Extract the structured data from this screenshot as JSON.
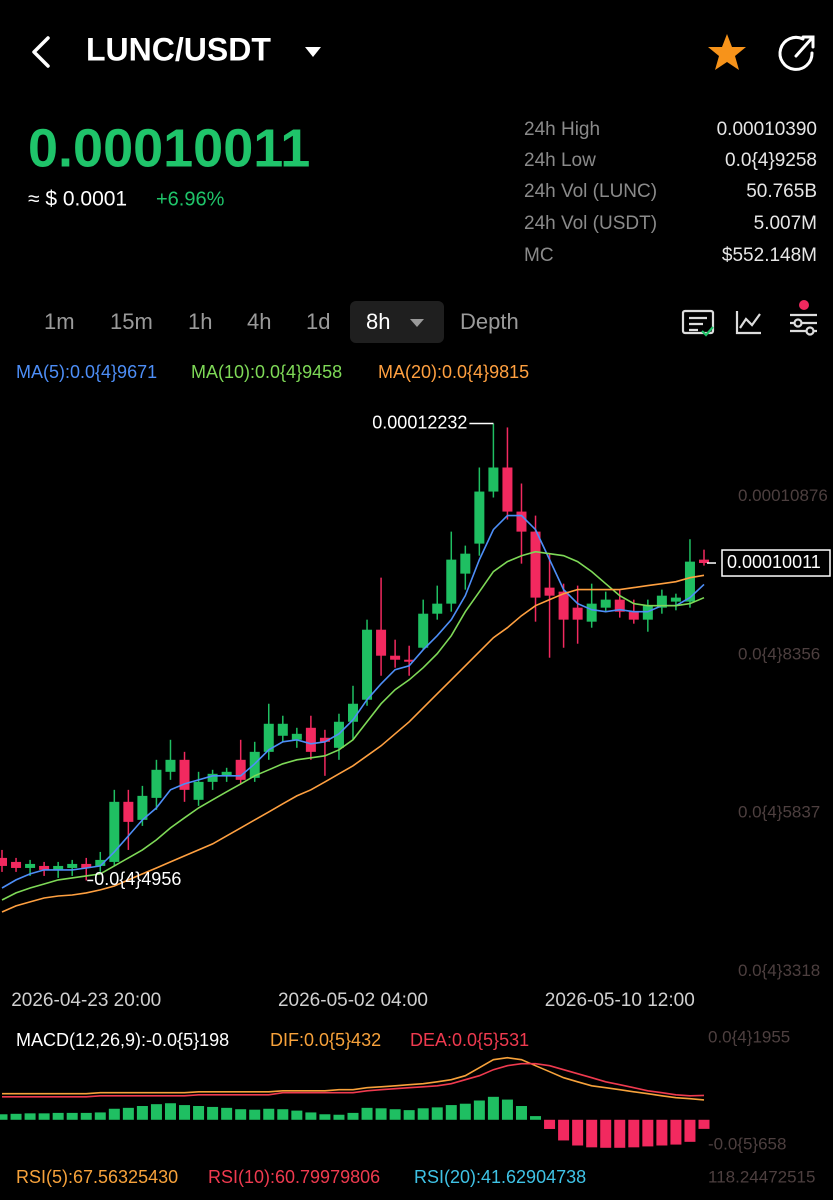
{
  "header": {
    "pair": "LUNC/USDT",
    "price": "0.00010011",
    "fiat": "≈ $ 0.0001",
    "change": "+6.96%"
  },
  "stats": [
    {
      "label": "24h High",
      "value": "0.00010390"
    },
    {
      "label": "24h Low",
      "value": "0.0{4}9258"
    },
    {
      "label": "24h Vol (LUNC)",
      "value": "50.765B"
    },
    {
      "label": "24h Vol (USDT)",
      "value": "5.007M"
    },
    {
      "label": "MC",
      "value": "$552.148M"
    }
  ],
  "tabs": [
    "1m",
    "15m",
    "1h",
    "4h",
    "1d",
    "8h",
    "Depth"
  ],
  "chart_data": [
    {
      "type": "candlestick",
      "categories": [
        null,
        null,
        null,
        null,
        null,
        null,
        "2026-04-23 20:00",
        null,
        null,
        null,
        null,
        null,
        null,
        null,
        null,
        null,
        null,
        null,
        null,
        null,
        null,
        null,
        null,
        null,
        null,
        "2026-05-02 04:00",
        null,
        null,
        null,
        null,
        null,
        null,
        null,
        null,
        null,
        null,
        null,
        null,
        null,
        null,
        null,
        null,
        null,
        null,
        "2026-05-10 12:00",
        null,
        null,
        null,
        null,
        null,
        null
      ],
      "open": [
        5.315e-05,
        5.251e-05,
        5.155e-05,
        5.187e-05,
        5.124e-05,
        5.155e-05,
        5.219e-05,
        5.187e-05,
        5.251e-05,
        6.208e-05,
        5.921e-05,
        6.271e-05,
        6.686e-05,
        6.877e-05,
        6.24e-05,
        6.526e-05,
        6.622e-05,
        6.877e-05,
        6.59e-05,
        7.004e-05,
        7.26e-05,
        7.196e-05,
        7.387e-05,
        7.228e-05,
        7.068e-05,
        7.483e-05,
        7.834e-05,
        8.949e-05,
        8.535e-05,
        8.471e-05,
        8.662e-05,
        9.204e-05,
        9.364e-05,
        9.842e-05,
        0.0001032,
        0.00011149,
        0.00011532,
        0.0001083,
        0.00010511,
        9.619e-05,
        9.555e-05,
        9.3e-05,
        9.077e-05,
        9.3e-05,
        9.428e-05,
        9.236e-05,
        9.109e-05,
        9.3e-05,
        9.396e-05,
        9.396e-05,
        0.00010065
      ],
      "high": [
        5.442e-05,
        5.315e-05,
        5.283e-05,
        5.251e-05,
        5.251e-05,
        5.283e-05,
        5.315e-05,
        5.41e-05,
        6.399e-05,
        6.399e-05,
        6.462e-05,
        6.877e-05,
        7.196e-05,
        7.004e-05,
        6.686e-05,
        6.718e-05,
        6.75e-05,
        7.196e-05,
        7.164e-05,
        7.77e-05,
        7.579e-05,
        7.387e-05,
        7.579e-05,
        7.355e-05,
        7.611e-05,
        8.056e-05,
        9.109e-05,
        9.778e-05,
        8.79e-05,
        8.694e-05,
        9.428e-05,
        9.651e-05,
        0.00010511,
        0.00010288,
        0.00011532,
        0.00012232,
        0.0001217,
        0.00011277,
        0.00010766,
        0.0001016,
        9.682e-05,
        9.651e-05,
        9.682e-05,
        9.555e-05,
        9.587e-05,
        9.428e-05,
        9.428e-05,
        9.587e-05,
        9.523e-05,
        0.0001039,
        0.00010224
      ],
      "low": [
        5.092e-05,
        5.092e-05,
        5.028e-05,
        5.028e-05,
        4.996e-05,
        5.028e-05,
        4.956e-05,
        5.092e-05,
        5.187e-05,
        5.442e-05,
        5.825e-05,
        6.08e-05,
        6.558e-05,
        6.208e-05,
        6.144e-05,
        6.399e-05,
        6.526e-05,
        6.494e-05,
        6.526e-05,
        6.877e-05,
        7.164e-05,
        7.068e-05,
        6.877e-05,
        6.622e-05,
        6.877e-05,
        7.196e-05,
        7.738e-05,
        8.216e-05,
        8.344e-05,
        8.216e-05,
        8.63e-05,
        9.109e-05,
        9.236e-05,
        9.587e-05,
        0.00010128,
        0.00011054,
        0.00010703,
        0.00010001,
        9.077e-05,
        8.503e-05,
        8.662e-05,
        8.726e-05,
        8.981e-05,
        9.236e-05,
        9.141e-05,
        9.045e-05,
        8.917e-05,
        9.204e-05,
        9.258e-05,
        9.3e-05,
        9.97e-05
      ],
      "close": [
        5.187e-05,
        5.155e-05,
        5.219e-05,
        5.124e-05,
        5.187e-05,
        5.219e-05,
        5.155e-05,
        5.283e-05,
        6.208e-05,
        5.889e-05,
        6.303e-05,
        6.718e-05,
        6.877e-05,
        6.399e-05,
        6.526e-05,
        6.654e-05,
        6.686e-05,
        6.558e-05,
        7.004e-05,
        7.451e-05,
        7.451e-05,
        7.291e-05,
        7.004e-05,
        7.164e-05,
        7.483e-05,
        7.77e-05,
        8.949e-05,
        8.535e-05,
        8.471e-05,
        8.439e-05,
        9.204e-05,
        9.364e-05,
        0.00010065,
        0.0001016,
        0.00011149,
        0.00011532,
        0.0001083,
        0.00010511,
        9.46e-05,
        9.491e-05,
        9.109e-05,
        9.109e-05,
        9.364e-05,
        9.428e-05,
        9.236e-05,
        9.109e-05,
        9.332e-05,
        9.491e-05,
        9.46e-05,
        0.00010033,
        0.00010011
      ],
      "low_value_labels": [
        null,
        null,
        null,
        null,
        null,
        null,
        "0.0{4}4956",
        null,
        null,
        null,
        null,
        null,
        null,
        null,
        null,
        null,
        null,
        null,
        null,
        null,
        null,
        null,
        null,
        null,
        null,
        null,
        null,
        null,
        null,
        null,
        null,
        null,
        null,
        null,
        null,
        null,
        null,
        null,
        null,
        null,
        null,
        null,
        null,
        null,
        null,
        null,
        null,
        null,
        null,
        null,
        null
      ],
      "up_color": "#1fbf62",
      "down_color": "#f2295f",
      "series": [
        {
          "name": "MA(5):0.0{4}9671",
          "color": "#4d8ef7",
          "values": [
            4.836e-05,
            4.964e-05,
            5.06e-05,
            5.124e-05,
            5.124e-05,
            5.124e-05,
            5.155e-05,
            5.187e-05,
            5.41e-05,
            5.666e-05,
            5.921e-05,
            6.112e-05,
            6.399e-05,
            6.494e-05,
            6.558e-05,
            6.622e-05,
            6.622e-05,
            6.622e-05,
            6.813e-05,
            7.036e-05,
            7.164e-05,
            7.196e-05,
            7.132e-05,
            7.164e-05,
            7.291e-05,
            7.515e-05,
            7.834e-05,
            8.088e-05,
            8.312e-05,
            8.375e-05,
            8.63e-05,
            8.854e-05,
            9.109e-05,
            9.491e-05,
            0.00010065,
            0.00010543,
            0.00010766,
            0.00010766,
            0.00010543,
            0.00010065,
            9.587e-05,
            9.364e-05,
            9.268e-05,
            9.236e-05,
            9.268e-05,
            9.236e-05,
            9.236e-05,
            9.332e-05,
            9.332e-05,
            9.46e-05,
            9.671e-05
          ]
        },
        {
          "name": "MA(10):0.0{4}9458",
          "color": "#7ed957",
          "values": [
            4.645e-05,
            4.757e-05,
            4.836e-05,
            4.9e-05,
            4.964e-05,
            4.996e-05,
            5.028e-05,
            5.06e-05,
            5.187e-05,
            5.315e-05,
            5.442e-05,
            5.602e-05,
            5.793e-05,
            5.953e-05,
            6.112e-05,
            6.24e-05,
            6.367e-05,
            6.494e-05,
            6.622e-05,
            6.718e-05,
            6.813e-05,
            6.877e-05,
            6.909e-05,
            6.941e-05,
            7.036e-05,
            7.196e-05,
            7.483e-05,
            7.77e-05,
            7.993e-05,
            8.152e-05,
            8.344e-05,
            8.567e-05,
            8.854e-05,
            9.236e-05,
            9.555e-05,
            9.874e-05,
            0.00010033,
            0.00010128,
            0.00010192,
            0.0001016,
            0.00010128,
            0.00010033,
            9.874e-05,
            9.682e-05,
            9.491e-05,
            9.364e-05,
            9.332e-05,
            9.332e-05,
            9.332e-05,
            9.364e-05,
            9.458e-05
          ]
        },
        {
          "name": "MA(20):0.0{4}9815",
          "color": "#ffa040",
          "values": [
            4.454e-05,
            4.55e-05,
            4.614e-05,
            4.677e-05,
            4.709e-05,
            4.725e-05,
            4.757e-05,
            4.805e-05,
            4.868e-05,
            4.964e-05,
            5.06e-05,
            5.155e-05,
            5.251e-05,
            5.347e-05,
            5.442e-05,
            5.538e-05,
            5.666e-05,
            5.793e-05,
            5.921e-05,
            6.048e-05,
            6.176e-05,
            6.303e-05,
            6.399e-05,
            6.526e-05,
            6.654e-05,
            6.781e-05,
            6.941e-05,
            7.1e-05,
            7.291e-05,
            7.483e-05,
            7.706e-05,
            7.929e-05,
            8.152e-05,
            8.375e-05,
            8.598e-05,
            8.822e-05,
            8.981e-05,
            9.172e-05,
            9.332e-05,
            9.428e-05,
            9.523e-05,
            9.587e-05,
            9.587e-05,
            9.587e-05,
            9.587e-05,
            9.619e-05,
            9.651e-05,
            9.682e-05,
            9.714e-05,
            9.778e-05,
            9.815e-05
          ]
        }
      ],
      "ylim": [
        3.1e-05,
        0.000124
      ],
      "yticks": [
        {
          "value": 3.318e-05,
          "label": "0.0{4}3318"
        },
        {
          "value": 5.837e-05,
          "label": "0.0{4}5837"
        },
        {
          "value": 8.356e-05,
          "label": "0.0{4}8356"
        },
        0.00010876
      ]
    },
    {
      "type": "bar",
      "title": "MACD(12,26,9):-0.0{5}198",
      "values": [
        1.2e-06,
        1.3e-06,
        1.4e-06,
        1.4e-06,
        1.5e-06,
        1.5e-06,
        1.5e-06,
        1.6e-06,
        2.4e-06,
        2.6e-06,
        3e-06,
        3.4e-06,
        3.6e-06,
        3.2e-06,
        3e-06,
        2.8e-06,
        2.6e-06,
        2.3e-06,
        2.2e-06,
        2.4e-06,
        2.3e-06,
        2e-06,
        1.6e-06,
        1.2e-06,
        1.1e-06,
        1.5e-06,
        2.6e-06,
        2.5e-06,
        2.3e-06,
        2.1e-06,
        2.5e-06,
        2.7e-06,
        3.2e-06,
        3.5e-06,
        4.2e-06,
        5e-06,
        4.4e-06,
        3e-06,
        8e-07,
        -2e-06,
        -4.5e-06,
        -5.6e-06,
        -6e-06,
        -6.1e-06,
        -6.1e-06,
        -6e-06,
        -5.8e-06,
        -5.6e-06,
        -5.4e-06,
        -4.8e-06,
        -1.98e-06
      ],
      "up_color": "#1fbf62",
      "down_color": "#f2295f",
      "series": [
        {
          "name": "DIF:0.0{5}432",
          "color": "#f7a23b",
          "values": [
            5.67e-06,
            5.67e-06,
            5.67e-06,
            5.67e-06,
            5.67e-06,
            5.67e-06,
            5.67e-06,
            5.89e-06,
            5.89e-06,
            5.89e-06,
            5.89e-06,
            5.89e-06,
            5.89e-06,
            5.89e-06,
            6.1e-06,
            6.1e-06,
            6.1e-06,
            6.1e-06,
            6.1e-06,
            6.1e-06,
            6.32e-06,
            6.32e-06,
            6.32e-06,
            6.32e-06,
            6.54e-06,
            6.54e-06,
            6.98e-06,
            7.19e-06,
            7.41e-06,
            7.63e-06,
            7.85e-06,
            8.28e-06,
            8.72e-06,
            9.59e-06,
            1.134e-05,
            1.308e-05,
            1.352e-05,
            1.308e-05,
            1.177e-05,
            1.046e-05,
            9.16e-06,
            8.28e-06,
            7.41e-06,
            6.98e-06,
            6.54e-06,
            6.1e-06,
            5.67e-06,
            5.23e-06,
            4.8e-06,
            4.58e-06,
            4.32e-06
          ]
        },
        {
          "name": "DEA:0.0{5}531",
          "color": "#ef3a4f",
          "values": [
            5.01e-06,
            5.01e-06,
            5.01e-06,
            5.01e-06,
            5.01e-06,
            5.01e-06,
            5.01e-06,
            5.23e-06,
            5.23e-06,
            5.23e-06,
            5.23e-06,
            5.23e-06,
            5.23e-06,
            5.23e-06,
            5.45e-06,
            5.45e-06,
            5.45e-06,
            5.45e-06,
            5.45e-06,
            5.45e-06,
            5.89e-06,
            5.89e-06,
            5.89e-06,
            5.89e-06,
            5.89e-06,
            5.89e-06,
            6.32e-06,
            6.54e-06,
            6.76e-06,
            6.98e-06,
            7.19e-06,
            7.41e-06,
            7.85e-06,
            8.72e-06,
            9.59e-06,
            1.09e-05,
            1.177e-05,
            1.221e-05,
            1.221e-05,
            1.177e-05,
            1.09e-05,
            1.003e-05,
            9.16e-06,
            8.28e-06,
            7.63e-06,
            6.98e-06,
            6.32e-06,
            5.89e-06,
            5.45e-06,
            5.23e-06,
            5.31e-06
          ]
        }
      ],
      "ylim": [
        -6.58e-06,
        1.955e-05
      ],
      "yticks": [
        {
          "value": -6.58e-06,
          "label": "-0.0{5}658"
        },
        {
          "value": 1.955e-05,
          "label": "0.0{4}1955"
        }
      ]
    }
  ],
  "rsi": {
    "series": [
      {
        "name": "RSI(5):67.56325430",
        "color": "#f7a23b"
      },
      {
        "name": "RSI(10):60.79979806",
        "color": "#ef3a4f"
      },
      {
        "name": "RSI(20):41.62904738",
        "color": "#3fc3e6"
      }
    ],
    "axis_label": "118.24472515"
  }
}
